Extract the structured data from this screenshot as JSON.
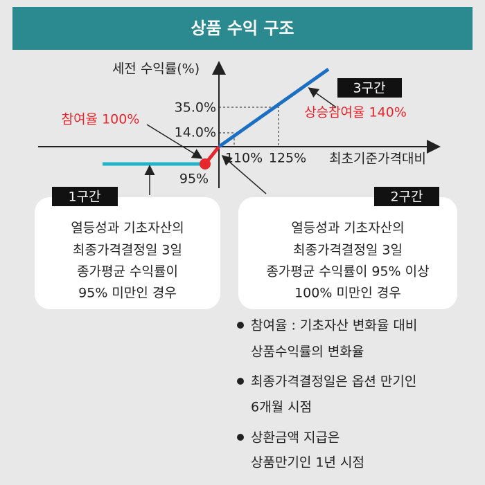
{
  "header": {
    "title": "상품 수익 구조"
  },
  "graph": {
    "y_axis_label": "세전 수익률(%)",
    "x_axis_label": "최초기준가격대비",
    "y_labels": [
      "35.0%",
      "14.0%"
    ],
    "x_labels": [
      "110%",
      "125%",
      "95%"
    ],
    "participation": "참여율 100%",
    "upside_participation": "상승참여율 140%"
  },
  "sections": [
    {
      "label": "1구간",
      "lines": [
        "열등성과 기초자산의",
        "최종가격결정일 3일",
        "종가평균 수익률이",
        "95% 미만인 경우"
      ]
    },
    {
      "label": "2구간",
      "lines": [
        "열등성과 기초자산의",
        "최종가격결정일 3일",
        "종가평균 수익률이 95% 이상",
        "100% 미만인 경우"
      ]
    },
    {
      "label": "3구간"
    }
  ],
  "notes": [
    [
      "참여율 : 기초자산 변화율 대비",
      "상품수익률의 변화율"
    ],
    [
      "최종가격결정일은 옵션 만기인",
      "6개월 시점"
    ],
    [
      "상환금액 지급은",
      "상품만기인 1년 시점"
    ]
  ]
}
